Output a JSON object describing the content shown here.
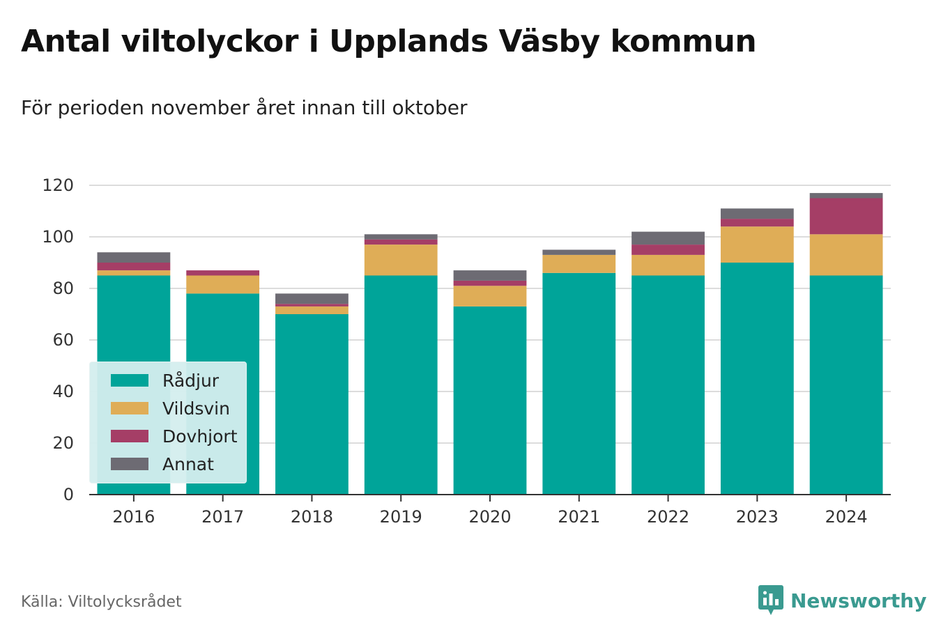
{
  "title": "Antal viltolyckor i Upplands Väsby kommun",
  "subtitle": "För perioden november året innan till oktober",
  "source": "Källa: Viltolycksrådet",
  "brand": {
    "name": "Newsworthy",
    "icon": "newsworthy-logo-icon",
    "color": "#3a9a90"
  },
  "chart_data": {
    "type": "bar",
    "stacked": true,
    "categories": [
      "2016",
      "2017",
      "2018",
      "2019",
      "2020",
      "2021",
      "2022",
      "2023",
      "2024"
    ],
    "series": [
      {
        "name": "Rådjur",
        "color": "#00a499",
        "values": [
          85,
          78,
          70,
          85,
          73,
          86,
          85,
          90,
          85
        ]
      },
      {
        "name": "Vildsvin",
        "color": "#dfad57",
        "values": [
          2,
          7,
          3,
          12,
          8,
          7,
          8,
          14,
          16
        ]
      },
      {
        "name": "Dovhjort",
        "color": "#a53e66",
        "values": [
          3,
          2,
          1,
          2,
          2,
          0,
          4,
          3,
          14
        ]
      },
      {
        "name": "Annat",
        "color": "#6d6b73",
        "values": [
          4,
          0,
          4,
          2,
          4,
          2,
          5,
          4,
          2
        ]
      }
    ],
    "ylim": [
      0,
      120
    ],
    "yticks": [
      "0",
      "20",
      "40",
      "60",
      "80",
      "100",
      "120"
    ],
    "xlabel": "",
    "ylabel": "",
    "grid": true,
    "legend_position": "bottom-left"
  }
}
